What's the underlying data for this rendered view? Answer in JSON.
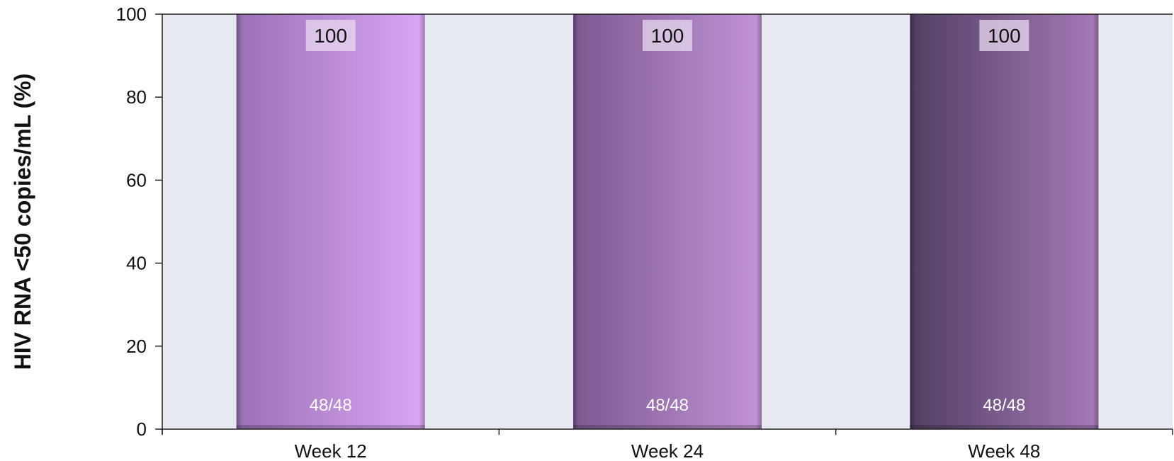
{
  "chart_data": {
    "type": "bar",
    "title": "",
    "xlabel": "",
    "ylabel": "HIV RNA <50 copies/mL (%)",
    "ylim": [
      0,
      100
    ],
    "yticks": [
      0,
      20,
      40,
      60,
      80,
      100
    ],
    "categories": [
      "Week 12",
      "Week 24",
      "Week 48"
    ],
    "values": [
      100,
      100,
      100
    ],
    "value_labels": [
      "100",
      "100",
      "100"
    ],
    "count_labels": [
      "48/48",
      "48/48",
      "48/48"
    ],
    "grid": false,
    "legend": "none",
    "colors": {
      "plot_background": "#e6e9f1",
      "bars": [
        {
          "dark": "#9a70b4",
          "light": "#daa6f6"
        },
        {
          "dark": "#7c5890",
          "light": "#c294d6"
        },
        {
          "dark": "#513e62",
          "light": "#a67ab8"
        }
      ],
      "value_label_box": "#e8d9f0"
    }
  }
}
